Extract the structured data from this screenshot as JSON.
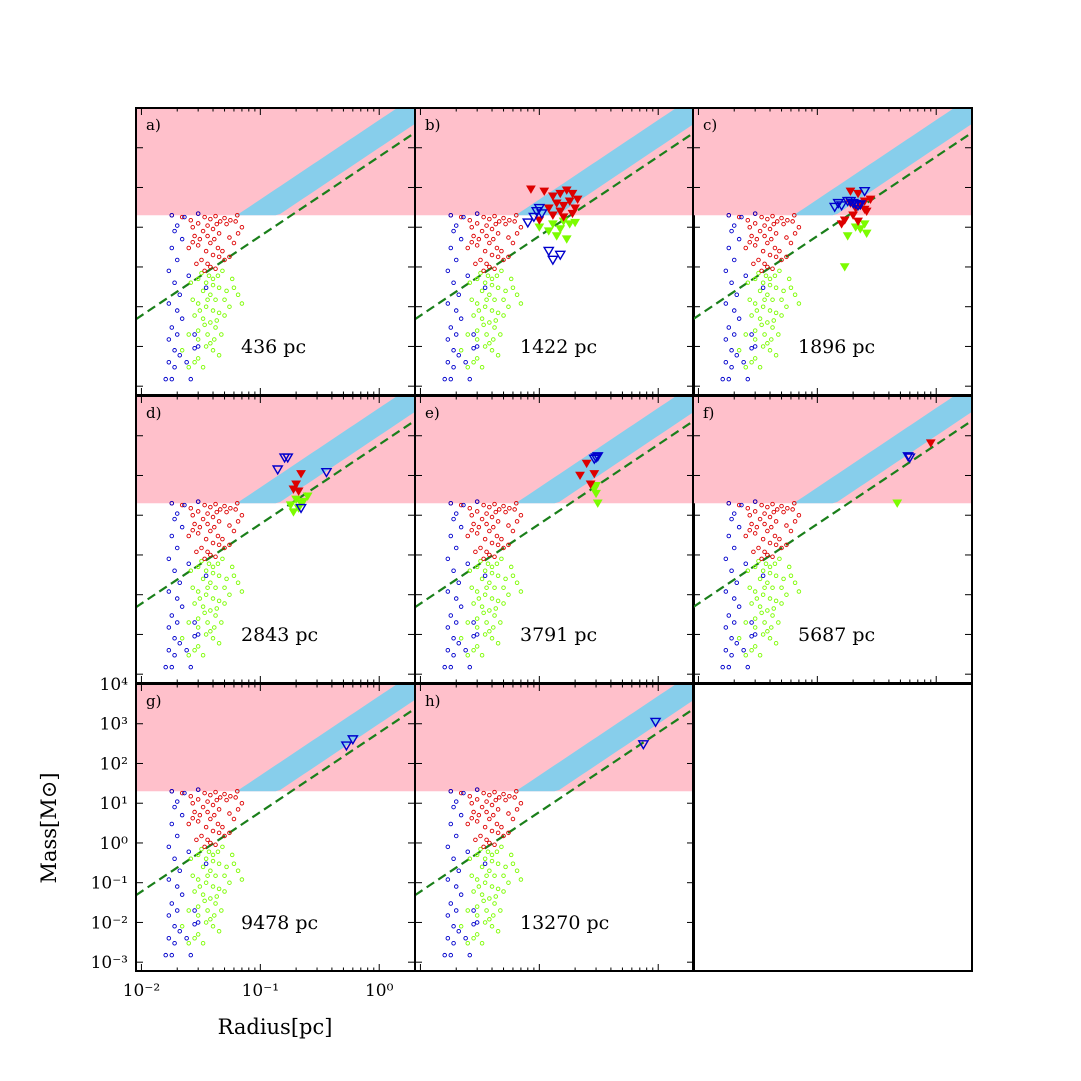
{
  "figure": {
    "xlabel": "Radius[pc]",
    "ylabel": "Mass[M⊙]"
  },
  "colors": {
    "pink_region": "#ffc0cb",
    "blue_region": "#87ceeb",
    "dashed_line": "#1a7f1a",
    "red": "#dd0000",
    "green": "#7cfc00",
    "blue": "#0000cc"
  },
  "chart_data": {
    "type": "scatter",
    "x_scale": "log",
    "y_scale": "log",
    "xlim": [
      0.009,
      2.0
    ],
    "ylim": [
      0.0006,
      10000
    ],
    "x_ticks": [
      {
        "value": 0.01,
        "label": "10⁻²"
      },
      {
        "value": 0.1,
        "label": "10⁻¹"
      },
      {
        "value": 1,
        "label": "10⁰"
      }
    ],
    "y_ticks": [
      {
        "value": 0.001,
        "label": "10⁻³"
      },
      {
        "value": 0.01,
        "label": "10⁻²"
      },
      {
        "value": 0.1,
        "label": "10⁻¹"
      },
      {
        "value": 1,
        "label": "10⁰"
      },
      {
        "value": 10,
        "label": "10¹"
      },
      {
        "value": 100,
        "label": "10²"
      },
      {
        "value": 1000,
        "label": "10³"
      },
      {
        "value": 10000,
        "label": "10⁴"
      }
    ],
    "pink_region": {
      "description": "mass above threshold",
      "mass_threshold": 20,
      "upper_bound_rule": "M > 20 and above blue band"
    },
    "blue_band": {
      "lower": {
        "slope": 2,
        "norm_at_1pc": 1000
      },
      "upper": {
        "slope": 2,
        "norm_at_1pc": 5000
      }
    },
    "dashed_line": {
      "slope": 2,
      "norm_at_1pc": 600
    },
    "base_clump": {
      "red": [
        [
          0.018,
          20
        ],
        [
          0.022,
          18
        ],
        [
          0.026,
          15
        ],
        [
          0.03,
          22
        ],
        [
          0.034,
          18
        ],
        [
          0.038,
          16
        ],
        [
          0.042,
          19
        ],
        [
          0.05,
          17
        ],
        [
          0.056,
          15
        ],
        [
          0.062,
          14
        ],
        [
          0.064,
          20
        ],
        [
          0.046,
          14
        ],
        [
          0.027,
          10
        ],
        [
          0.033,
          8
        ],
        [
          0.04,
          9
        ],
        [
          0.045,
          7
        ],
        [
          0.031,
          5
        ],
        [
          0.036,
          6
        ],
        [
          0.041,
          5
        ],
        [
          0.038,
          4
        ],
        [
          0.03,
          3.5
        ],
        [
          0.035,
          2.5
        ],
        [
          0.04,
          2
        ],
        [
          0.045,
          1.8
        ],
        [
          0.032,
          1.5
        ],
        [
          0.036,
          1.2
        ],
        [
          0.05,
          1.5
        ],
        [
          0.055,
          1.8
        ],
        [
          0.06,
          4
        ],
        [
          0.065,
          7
        ],
        [
          0.07,
          10
        ],
        [
          0.025,
          3
        ],
        [
          0.028,
          6
        ],
        [
          0.044,
          3
        ],
        [
          0.048,
          2.5
        ],
        [
          0.038,
          1.0
        ],
        [
          0.042,
          0.9
        ],
        [
          0.034,
          0.8
        ],
        [
          0.029,
          1.2
        ],
        [
          0.027,
          4.2
        ],
        [
          0.055,
          5.5
        ],
        [
          0.052,
          12
        ],
        [
          0.03,
          12.5
        ],
        [
          0.036,
          11
        ],
        [
          0.043,
          12
        ]
      ],
      "green": [
        [
          0.03,
          0.5
        ],
        [
          0.035,
          0.4
        ],
        [
          0.04,
          0.35
        ],
        [
          0.045,
          0.3
        ],
        [
          0.033,
          0.25
        ],
        [
          0.038,
          0.2
        ],
        [
          0.042,
          0.15
        ],
        [
          0.03,
          0.12
        ],
        [
          0.035,
          0.1
        ],
        [
          0.04,
          0.08
        ],
        [
          0.045,
          0.07
        ],
        [
          0.05,
          0.06
        ],
        [
          0.033,
          0.05
        ],
        [
          0.038,
          0.04
        ],
        [
          0.042,
          0.03
        ],
        [
          0.03,
          0.025
        ],
        [
          0.036,
          0.02
        ],
        [
          0.041,
          0.015
        ],
        [
          0.035,
          0.01
        ],
        [
          0.04,
          0.008
        ],
        [
          0.045,
          0.006
        ],
        [
          0.03,
          0.005
        ],
        [
          0.033,
          0.003
        ],
        [
          0.028,
          0.004
        ],
        [
          0.025,
          0.003
        ],
        [
          0.022,
          0.008
        ],
        [
          0.025,
          0.02
        ],
        [
          0.028,
          0.06
        ],
        [
          0.05,
          0.15
        ],
        [
          0.055,
          0.1
        ],
        [
          0.06,
          0.3
        ],
        [
          0.048,
          0.8
        ],
        [
          0.044,
          0.6
        ],
        [
          0.052,
          0.25
        ],
        [
          0.037,
          0.6
        ],
        [
          0.032,
          0.7
        ],
        [
          0.04,
          0.5
        ],
        [
          0.036,
          0.15
        ],
        [
          0.043,
          0.045
        ],
        [
          0.031,
          0.08
        ],
        [
          0.047,
          0.02
        ],
        [
          0.038,
          0.012
        ],
        [
          0.027,
          0.15
        ],
        [
          0.034,
          0.035
        ],
        [
          0.03,
          0.015
        ],
        [
          0.026,
          0.4
        ],
        [
          0.058,
          0.5
        ],
        [
          0.065,
          0.2
        ],
        [
          0.07,
          0.12
        ]
      ],
      "blue": [
        [
          0.018,
          20
        ],
        [
          0.023,
          18
        ],
        [
          0.03,
          22
        ],
        [
          0.019,
          8
        ],
        [
          0.022,
          5
        ],
        [
          0.018,
          3
        ],
        [
          0.02,
          1.5
        ],
        [
          0.017,
          0.8
        ],
        [
          0.019,
          0.4
        ],
        [
          0.021,
          0.2
        ],
        [
          0.017,
          0.12
        ],
        [
          0.02,
          0.08
        ],
        [
          0.022,
          0.05
        ],
        [
          0.018,
          0.03
        ],
        [
          0.02,
          0.02
        ],
        [
          0.017,
          0.015
        ],
        [
          0.019,
          0.008
        ],
        [
          0.021,
          0.006
        ],
        [
          0.017,
          0.004
        ],
        [
          0.019,
          0.003
        ],
        [
          0.024,
          0.004
        ],
        [
          0.028,
          0.009
        ],
        [
          0.025,
          0.6
        ],
        [
          0.028,
          0.02
        ],
        [
          0.035,
          0.3
        ],
        [
          0.03,
          0.01
        ],
        [
          0.026,
          0.0015
        ],
        [
          0.018,
          0.0015
        ],
        [
          0.016,
          0.0015
        ],
        [
          0.02,
          11
        ]
      ]
    },
    "panels": [
      {
        "id": "a",
        "label": "a)",
        "distance": "436 pc",
        "red": [],
        "green": [],
        "blue": []
      },
      {
        "id": "b",
        "label": "b)",
        "distance": "1422 pc",
        "red": [
          [
            0.085,
            90
          ],
          [
            0.11,
            80
          ],
          [
            0.13,
            60
          ],
          [
            0.15,
            70
          ],
          [
            0.17,
            85
          ],
          [
            0.19,
            70
          ],
          [
            0.14,
            40
          ],
          [
            0.16,
            35
          ],
          [
            0.12,
            30
          ],
          [
            0.18,
            45
          ],
          [
            0.21,
            50
          ],
          [
            0.13,
            20
          ],
          [
            0.16,
            18
          ],
          [
            0.19,
            22
          ],
          [
            0.1,
            15
          ],
          [
            0.2,
            30
          ],
          [
            0.15,
            25
          ]
        ],
        "green": [
          [
            0.1,
            10
          ],
          [
            0.13,
            12
          ],
          [
            0.15,
            9
          ],
          [
            0.18,
            12
          ],
          [
            0.2,
            13
          ],
          [
            0.14,
            6
          ],
          [
            0.17,
            5
          ],
          [
            0.12,
            8
          ],
          [
            0.16,
            14
          ]
        ],
        "blue": [
          [
            0.095,
            25
          ],
          [
            0.105,
            22
          ],
          [
            0.08,
            13
          ],
          [
            0.1,
            30
          ],
          [
            0.13,
            1.5
          ],
          [
            0.12,
            2.5
          ],
          [
            0.15,
            2
          ],
          [
            0.09,
            18
          ]
        ]
      },
      {
        "id": "c",
        "label": "c)",
        "distance": "1896 pc",
        "red": [
          [
            0.19,
            80
          ],
          [
            0.22,
            70
          ],
          [
            0.25,
            45
          ],
          [
            0.28,
            50
          ],
          [
            0.23,
            35
          ],
          [
            0.2,
            20
          ],
          [
            0.26,
            25
          ],
          [
            0.17,
            15
          ],
          [
            0.22,
            14
          ],
          [
            0.25,
            28
          ],
          [
            0.19,
            40
          ],
          [
            0.16,
            12
          ],
          [
            0.21,
            30
          ]
        ],
        "green": [
          [
            0.21,
            10
          ],
          [
            0.23,
            9
          ],
          [
            0.26,
            7
          ],
          [
            0.18,
            6
          ],
          [
            0.25,
            12
          ],
          [
            0.17,
            1
          ]
        ],
        "blue": [
          [
            0.15,
            40
          ],
          [
            0.18,
            45
          ],
          [
            0.2,
            40
          ],
          [
            0.21,
            38
          ],
          [
            0.19,
            45
          ],
          [
            0.22,
            35
          ],
          [
            0.23,
            37
          ],
          [
            0.16,
            35
          ],
          [
            0.14,
            32
          ],
          [
            0.25,
            80
          ]
        ]
      },
      {
        "id": "d",
        "label": "d)",
        "distance": "2843 pc",
        "red": [
          [
            0.22,
            110
          ],
          [
            0.2,
            60
          ],
          [
            0.19,
            45
          ],
          [
            0.21,
            40
          ]
        ],
        "green": [
          [
            0.2,
            25
          ],
          [
            0.22,
            20
          ],
          [
            0.18,
            18
          ],
          [
            0.21,
            15
          ],
          [
            0.23,
            22
          ],
          [
            0.25,
            30
          ],
          [
            0.19,
            12
          ]
        ],
        "blue": [
          [
            0.16,
            280
          ],
          [
            0.17,
            280
          ],
          [
            0.14,
            140
          ],
          [
            0.36,
            120
          ],
          [
            0.22,
            15
          ]
        ]
      },
      {
        "id": "e",
        "label": "e)",
        "distance": "3791 pc",
        "red": [
          [
            0.25,
            200
          ],
          [
            0.22,
            100
          ],
          [
            0.27,
            60
          ],
          [
            0.29,
            110
          ]
        ],
        "green": [
          [
            0.3,
            55
          ],
          [
            0.29,
            45
          ],
          [
            0.3,
            35
          ],
          [
            0.31,
            20
          ]
        ],
        "blue": [
          [
            0.31,
            300
          ],
          [
            0.3,
            280
          ],
          [
            0.29,
            260
          ]
        ]
      },
      {
        "id": "f",
        "label": "f)",
        "distance": "5687 pc",
        "red": [
          [
            0.9,
            650
          ]
        ],
        "green": [
          [
            0.47,
            20
          ]
        ],
        "blue": [
          [
            0.6,
            280
          ],
          [
            0.58,
            300
          ]
        ]
      },
      {
        "id": "g",
        "label": "g)",
        "distance": "9478 pc",
        "red": [],
        "green": [],
        "blue": [
          [
            0.53,
            280
          ],
          [
            0.6,
            400
          ]
        ]
      },
      {
        "id": "h",
        "label": "h)",
        "distance": "13270 pc",
        "red": [],
        "green": [],
        "blue": [
          [
            0.75,
            300
          ],
          [
            0.95,
            1100
          ]
        ]
      }
    ]
  }
}
